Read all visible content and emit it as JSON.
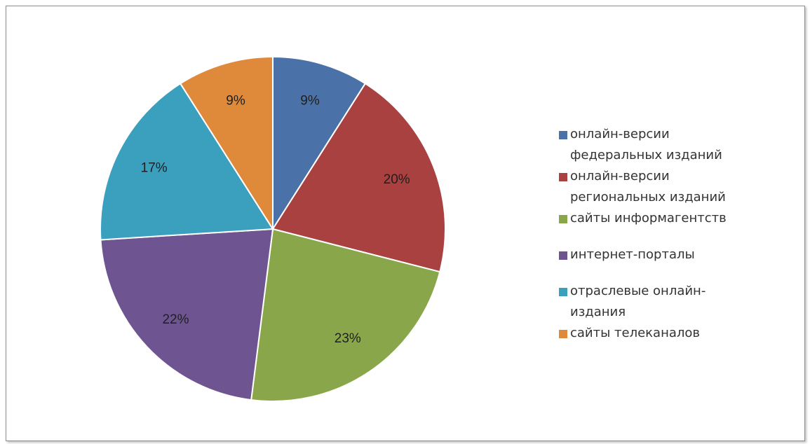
{
  "chart_data": {
    "type": "pie",
    "title": "",
    "slices": [
      {
        "name": "онлайн-версии федеральных изданий",
        "value": 9,
        "label": "9%",
        "color": "#4a72a8"
      },
      {
        "name": "онлайн-версии региональных изданий",
        "value": 20,
        "label": "20%",
        "color": "#a8413f"
      },
      {
        "name": "сайты информагентств",
        "value": 23,
        "label": "23%",
        "color": "#89a64a"
      },
      {
        "name": "интернет-порталы",
        "value": 22,
        "label": "22%",
        "color": "#6e5591"
      },
      {
        "name": "отраслевые онлайн-издания",
        "value": 17,
        "label": "17%",
        "color": "#3b9fbe"
      },
      {
        "name": "сайты телеканалов",
        "value": 9,
        "label": "9%",
        "color": "#de8a3a"
      }
    ],
    "legend_position": "right"
  },
  "legend": {
    "items": [
      {
        "lines": [
          "онлайн-версии",
          "федеральных изданий"
        ]
      },
      {
        "lines": [
          "онлайн-версии",
          "региональных изданий"
        ]
      },
      {
        "lines": [
          "сайты информагентств"
        ]
      },
      {
        "lines": [
          "интернет-порталы"
        ]
      },
      {
        "lines": [
          "отраслевые онлайн-",
          "издания"
        ]
      },
      {
        "lines": [
          "сайты телеканалов"
        ]
      }
    ]
  }
}
